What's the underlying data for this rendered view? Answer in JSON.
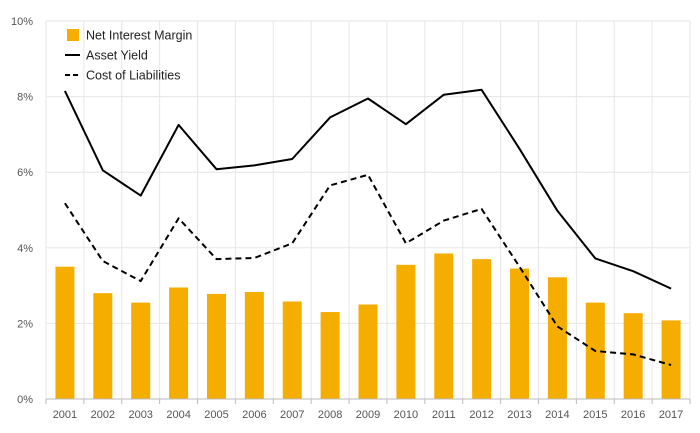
{
  "chart_data": {
    "type": "bar",
    "title": "",
    "xlabel": "",
    "ylabel": "",
    "categories": [
      "2001",
      "2002",
      "2003",
      "2004",
      "2005",
      "2006",
      "2007",
      "2008",
      "2009",
      "2010",
      "2011",
      "2012",
      "2013",
      "2014",
      "2015",
      "2016",
      "2017"
    ],
    "ylim": [
      0,
      10
    ],
    "yticks": [
      {
        "value": 0,
        "label": "0%"
      },
      {
        "value": 2,
        "label": "2%"
      },
      {
        "value": 4,
        "label": "4%"
      },
      {
        "value": 6,
        "label": "6%"
      },
      {
        "value": 8,
        "label": "8%"
      },
      {
        "value": 10,
        "label": "10%"
      }
    ],
    "grid": true,
    "legend_position": "top-left",
    "series": [
      {
        "name": "Net Interest Margin",
        "type": "bar",
        "color": "#F5AE00",
        "values": [
          3.5,
          2.8,
          2.55,
          2.95,
          2.78,
          2.83,
          2.58,
          2.3,
          2.5,
          3.55,
          3.85,
          3.7,
          3.45,
          3.22,
          2.55,
          2.27,
          2.08
        ]
      },
      {
        "name": "Asset Yield",
        "type": "line",
        "style": "solid",
        "color": "#000000",
        "values": [
          8.15,
          6.05,
          5.38,
          7.25,
          6.08,
          6.18,
          6.35,
          7.45,
          7.95,
          7.27,
          8.05,
          8.18,
          6.62,
          4.98,
          3.72,
          3.38,
          2.92
        ]
      },
      {
        "name": "Cost of Liabilities",
        "type": "line",
        "style": "dashed",
        "color": "#000000",
        "values": [
          5.18,
          3.65,
          3.12,
          4.78,
          3.7,
          3.73,
          4.12,
          5.65,
          5.93,
          4.12,
          4.72,
          5.03,
          3.5,
          1.92,
          1.27,
          1.18,
          0.9
        ]
      }
    ]
  }
}
